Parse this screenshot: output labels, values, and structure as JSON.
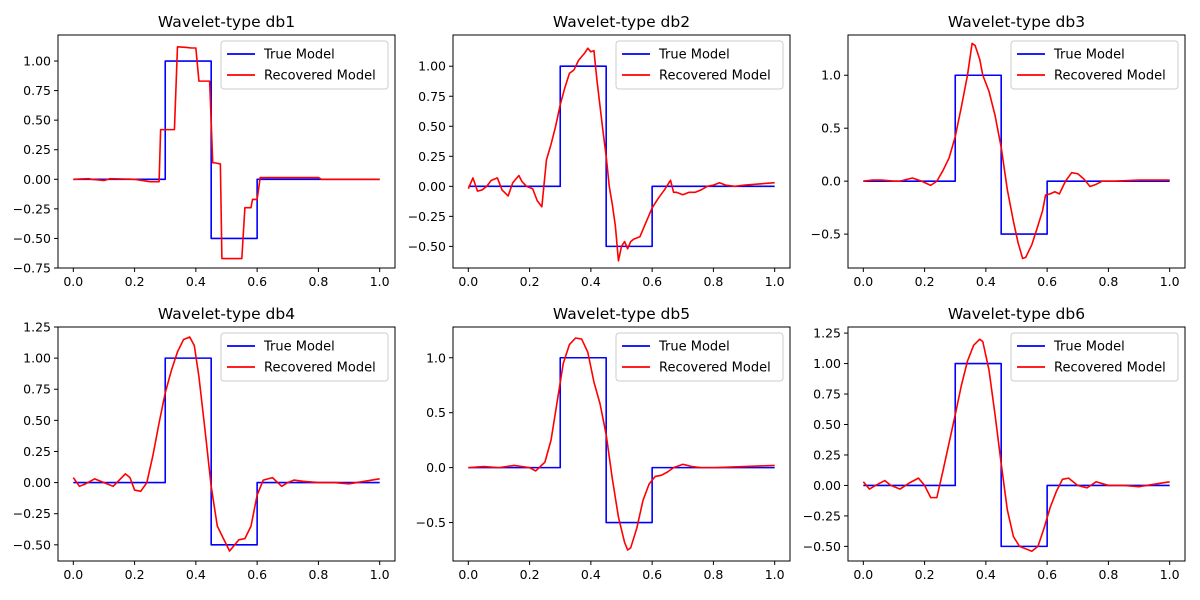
{
  "figure": {
    "background": "#ffffff"
  },
  "colors": {
    "true_model": "#0000ff",
    "recovered_model": "#ff0000"
  },
  "chart_data": [
    {
      "type": "line",
      "title": "Wavelet-type db1",
      "xlabel": "",
      "ylabel": "",
      "xlim": [
        -0.05,
        1.05
      ],
      "ylim": [
        -0.75,
        1.22
      ],
      "xticks": [
        0.0,
        0.2,
        0.4,
        0.6,
        0.8,
        1.0
      ],
      "xtick_labels": [
        "0.0",
        "0.2",
        "0.4",
        "0.6",
        "0.8",
        "1.0"
      ],
      "yticks": [
        -0.75,
        -0.5,
        -0.25,
        0.0,
        0.25,
        0.5,
        0.75,
        1.0
      ],
      "ytick_labels": [
        "−0.75",
        "−0.50",
        "−0.25",
        "0.00",
        "0.25",
        "0.50",
        "0.75",
        "1.00"
      ],
      "legend": {
        "position": "upper right",
        "entries": [
          "True Model",
          "Recovered Model"
        ]
      },
      "series": [
        {
          "name": "True Model",
          "color": "#0000ff",
          "x": [
            0,
            0.3,
            0.3,
            0.45,
            0.45,
            0.6,
            0.6,
            1.0
          ],
          "y": [
            0,
            0,
            1,
            1,
            -0.5,
            -0.5,
            0,
            0
          ]
        },
        {
          "name": "Recovered Model",
          "color": "#ff0000",
          "x": [
            0,
            0.05,
            0.06,
            0.1,
            0.12,
            0.2,
            0.25,
            0.28,
            0.285,
            0.31,
            0.315,
            0.33,
            0.34,
            0.37,
            0.385,
            0.4,
            0.41,
            0.44,
            0.445,
            0.455,
            0.46,
            0.48,
            0.485,
            0.55,
            0.56,
            0.58,
            0.585,
            0.6,
            0.61,
            0.8,
            0.81,
            1.0
          ],
          "y": [
            0,
            0.005,
            0.0,
            -0.01,
            0.005,
            0.0,
            -0.02,
            -0.02,
            0.42,
            0.42,
            0.42,
            0.42,
            1.12,
            1.115,
            1.11,
            1.11,
            0.83,
            0.83,
            0.83,
            0.14,
            0.14,
            0.13,
            -0.67,
            -0.67,
            -0.24,
            -0.24,
            -0.17,
            -0.17,
            0.015,
            0.015,
            0.0,
            0.0
          ]
        }
      ]
    },
    {
      "type": "line",
      "title": "Wavelet-type db2",
      "xlabel": "",
      "ylabel": "",
      "xlim": [
        -0.05,
        1.05
      ],
      "ylim": [
        -0.68,
        1.26
      ],
      "xticks": [
        0.0,
        0.2,
        0.4,
        0.6,
        0.8,
        1.0
      ],
      "xtick_labels": [
        "0.0",
        "0.2",
        "0.4",
        "0.6",
        "0.8",
        "1.0"
      ],
      "yticks": [
        -0.5,
        -0.25,
        0.0,
        0.25,
        0.5,
        0.75,
        1.0
      ],
      "ytick_labels": [
        "−0.50",
        "−0.25",
        "0.00",
        "0.25",
        "0.50",
        "0.75",
        "1.00"
      ],
      "legend": {
        "position": "upper right",
        "entries": [
          "True Model",
          "Recovered Model"
        ]
      },
      "series": [
        {
          "name": "True Model",
          "color": "#0000ff",
          "x": [
            0,
            0.3,
            0.3,
            0.45,
            0.45,
            0.6,
            0.6,
            1.0
          ],
          "y": [
            0,
            0,
            1,
            1,
            -0.5,
            -0.5,
            0,
            0
          ]
        },
        {
          "name": "Recovered Model",
          "color": "#ff0000",
          "x": [
            0,
            0.015,
            0.03,
            0.045,
            0.06,
            0.075,
            0.095,
            0.11,
            0.13,
            0.145,
            0.165,
            0.175,
            0.19,
            0.21,
            0.225,
            0.24,
            0.255,
            0.27,
            0.285,
            0.3,
            0.315,
            0.33,
            0.345,
            0.36,
            0.38,
            0.39,
            0.4,
            0.41,
            0.42,
            0.44,
            0.45,
            0.46,
            0.47,
            0.48,
            0.49,
            0.5,
            0.51,
            0.52,
            0.53,
            0.54,
            0.56,
            0.58,
            0.6,
            0.62,
            0.64,
            0.66,
            0.67,
            0.68,
            0.7,
            0.72,
            0.74,
            0.76,
            0.78,
            0.8,
            0.82,
            0.84,
            0.87,
            0.9,
            0.95,
            1.0
          ],
          "y": [
            -0.02,
            0.07,
            -0.04,
            -0.03,
            0.0,
            0.05,
            0.07,
            -0.03,
            -0.08,
            0.03,
            0.09,
            0.04,
            0.0,
            -0.02,
            -0.12,
            -0.17,
            0.22,
            0.35,
            0.5,
            0.68,
            0.82,
            0.94,
            0.97,
            1.05,
            1.11,
            1.15,
            1.12,
            1.13,
            0.88,
            0.45,
            0.25,
            0.0,
            -0.15,
            -0.33,
            -0.62,
            -0.5,
            -0.46,
            -0.52,
            -0.46,
            -0.44,
            -0.42,
            -0.3,
            -0.18,
            -0.1,
            -0.03,
            0.05,
            -0.05,
            -0.05,
            -0.07,
            -0.05,
            -0.05,
            -0.03,
            0.0,
            0.01,
            0.03,
            0.01,
            0.0,
            0.01,
            0.02,
            0.03
          ]
        }
      ]
    },
    {
      "type": "line",
      "title": "Wavelet-type db3",
      "xlabel": "",
      "ylabel": "",
      "xlim": [
        -0.05,
        1.05
      ],
      "ylim": [
        -0.82,
        1.38
      ],
      "xticks": [
        0.0,
        0.2,
        0.4,
        0.6,
        0.8,
        1.0
      ],
      "xtick_labels": [
        "0.0",
        "0.2",
        "0.4",
        "0.6",
        "0.8",
        "1.0"
      ],
      "yticks": [
        -0.5,
        0.0,
        0.5,
        1.0
      ],
      "ytick_labels": [
        "−0.5",
        "0.0",
        "0.5",
        "1.0"
      ],
      "legend": {
        "position": "upper right",
        "entries": [
          "True Model",
          "Recovered Model"
        ]
      },
      "series": [
        {
          "name": "True Model",
          "color": "#0000ff",
          "x": [
            0,
            0.3,
            0.3,
            0.45,
            0.45,
            0.6,
            0.6,
            1.0
          ],
          "y": [
            0,
            0,
            1,
            1,
            -0.5,
            -0.5,
            0,
            0
          ]
        },
        {
          "name": "Recovered Model",
          "color": "#ff0000",
          "x": [
            0,
            0.03,
            0.06,
            0.1,
            0.12,
            0.16,
            0.19,
            0.22,
            0.24,
            0.26,
            0.28,
            0.3,
            0.32,
            0.34,
            0.355,
            0.365,
            0.38,
            0.39,
            0.41,
            0.43,
            0.45,
            0.47,
            0.49,
            0.505,
            0.52,
            0.53,
            0.55,
            0.57,
            0.585,
            0.595,
            0.61,
            0.625,
            0.64,
            0.66,
            0.68,
            0.7,
            0.72,
            0.74,
            0.76,
            0.78,
            0.82,
            0.9,
            0.95,
            1.0
          ],
          "y": [
            0,
            0.01,
            0.01,
            0.0,
            0.0,
            0.03,
            0.0,
            -0.04,
            0.0,
            0.1,
            0.22,
            0.42,
            0.7,
            1.0,
            1.3,
            1.28,
            1.15,
            1.0,
            0.85,
            0.62,
            0.32,
            -0.08,
            -0.38,
            -0.58,
            -0.73,
            -0.72,
            -0.6,
            -0.42,
            -0.28,
            -0.13,
            -0.12,
            -0.1,
            -0.12,
            0.0,
            0.08,
            0.07,
            0.02,
            -0.05,
            -0.03,
            0.0,
            0.0,
            0.01,
            0.01,
            0.01
          ]
        }
      ]
    },
    {
      "type": "line",
      "title": "Wavelet-type db4",
      "xlabel": "",
      "ylabel": "",
      "xlim": [
        -0.05,
        1.05
      ],
      "ylim": [
        -0.63,
        1.25
      ],
      "xticks": [
        0.0,
        0.2,
        0.4,
        0.6,
        0.8,
        1.0
      ],
      "xtick_labels": [
        "0.0",
        "0.2",
        "0.4",
        "0.6",
        "0.8",
        "1.0"
      ],
      "yticks": [
        -0.5,
        -0.25,
        0.0,
        0.25,
        0.5,
        0.75,
        1.0,
        1.25
      ],
      "ytick_labels": [
        "−0.50",
        "−0.25",
        "0.00",
        "0.25",
        "0.50",
        "0.75",
        "1.00",
        "1.25"
      ],
      "legend": {
        "position": "upper right",
        "entries": [
          "True Model",
          "Recovered Model"
        ]
      },
      "series": [
        {
          "name": "True Model",
          "color": "#0000ff",
          "x": [
            0,
            0.3,
            0.3,
            0.45,
            0.45,
            0.6,
            0.6,
            1.0
          ],
          "y": [
            0,
            0,
            1,
            1,
            -0.5,
            -0.5,
            0,
            0
          ]
        },
        {
          "name": "Recovered Model",
          "color": "#ff0000",
          "x": [
            0,
            0.02,
            0.04,
            0.07,
            0.1,
            0.13,
            0.15,
            0.17,
            0.185,
            0.2,
            0.22,
            0.24,
            0.26,
            0.28,
            0.3,
            0.32,
            0.34,
            0.36,
            0.38,
            0.395,
            0.41,
            0.43,
            0.45,
            0.47,
            0.49,
            0.51,
            0.52,
            0.54,
            0.56,
            0.58,
            0.6,
            0.62,
            0.65,
            0.68,
            0.7,
            0.72,
            0.75,
            0.8,
            0.85,
            0.9,
            0.95,
            1.0
          ],
          "y": [
            0.04,
            -0.03,
            -0.01,
            0.03,
            0.0,
            -0.03,
            0.02,
            0.07,
            0.04,
            -0.06,
            -0.07,
            0.0,
            0.22,
            0.48,
            0.72,
            0.9,
            1.05,
            1.15,
            1.17,
            1.1,
            0.85,
            0.42,
            -0.03,
            -0.35,
            -0.45,
            -0.55,
            -0.52,
            -0.46,
            -0.45,
            -0.35,
            -0.1,
            0.02,
            0.04,
            -0.03,
            0.0,
            0.02,
            0.01,
            0.0,
            0.0,
            -0.01,
            0.01,
            0.03
          ]
        }
      ]
    },
    {
      "type": "line",
      "title": "Wavelet-type db5",
      "xlabel": "",
      "ylabel": "",
      "xlim": [
        -0.05,
        1.05
      ],
      "ylim": [
        -0.85,
        1.28
      ],
      "xticks": [
        0.0,
        0.2,
        0.4,
        0.6,
        0.8,
        1.0
      ],
      "xtick_labels": [
        "0.0",
        "0.2",
        "0.4",
        "0.6",
        "0.8",
        "1.0"
      ],
      "yticks": [
        -0.5,
        0.0,
        0.5,
        1.0
      ],
      "ytick_labels": [
        "−0.5",
        "0.0",
        "0.5",
        "1.0"
      ],
      "legend": {
        "position": "upper right",
        "entries": [
          "True Model",
          "Recovered Model"
        ]
      },
      "series": [
        {
          "name": "True Model",
          "color": "#0000ff",
          "x": [
            0,
            0.3,
            0.3,
            0.45,
            0.45,
            0.6,
            0.6,
            1.0
          ],
          "y": [
            0,
            0,
            1,
            1,
            -0.5,
            -0.5,
            0,
            0
          ]
        },
        {
          "name": "Recovered Model",
          "color": "#ff0000",
          "x": [
            0,
            0.05,
            0.1,
            0.15,
            0.2,
            0.22,
            0.25,
            0.27,
            0.29,
            0.31,
            0.33,
            0.35,
            0.37,
            0.39,
            0.41,
            0.43,
            0.45,
            0.47,
            0.49,
            0.51,
            0.52,
            0.53,
            0.55,
            0.57,
            0.59,
            0.61,
            0.63,
            0.65,
            0.67,
            0.7,
            0.73,
            0.76,
            0.8,
            0.9,
            1.0
          ],
          "y": [
            0,
            0.01,
            0.0,
            0.02,
            0.0,
            -0.03,
            0.05,
            0.25,
            0.6,
            0.95,
            1.12,
            1.18,
            1.17,
            1.05,
            0.78,
            0.58,
            0.3,
            -0.1,
            -0.45,
            -0.68,
            -0.75,
            -0.73,
            -0.55,
            -0.3,
            -0.15,
            -0.08,
            -0.07,
            -0.04,
            0.0,
            0.03,
            0.01,
            0.0,
            0.0,
            0.01,
            0.02
          ]
        }
      ]
    },
    {
      "type": "line",
      "title": "Wavelet-type db6",
      "xlabel": "",
      "ylabel": "",
      "xlim": [
        -0.05,
        1.05
      ],
      "ylim": [
        -0.62,
        1.3
      ],
      "xticks": [
        0.0,
        0.2,
        0.4,
        0.6,
        0.8,
        1.0
      ],
      "xtick_labels": [
        "0.0",
        "0.2",
        "0.4",
        "0.6",
        "0.8",
        "1.0"
      ],
      "yticks": [
        -0.5,
        -0.25,
        0.0,
        0.25,
        0.5,
        0.75,
        1.0,
        1.25
      ],
      "ytick_labels": [
        "−0.50",
        "−0.25",
        "0.00",
        "0.25",
        "0.50",
        "0.75",
        "1.00",
        "1.25"
      ],
      "legend": {
        "position": "upper right",
        "entries": [
          "True Model",
          "Recovered Model"
        ]
      },
      "series": [
        {
          "name": "True Model",
          "color": "#0000ff",
          "x": [
            0,
            0.3,
            0.3,
            0.45,
            0.45,
            0.6,
            0.6,
            1.0
          ],
          "y": [
            0,
            0,
            1,
            1,
            -0.5,
            -0.5,
            0,
            0
          ]
        },
        {
          "name": "Recovered Model",
          "color": "#ff0000",
          "x": [
            0,
            0.02,
            0.04,
            0.07,
            0.09,
            0.12,
            0.15,
            0.18,
            0.2,
            0.22,
            0.24,
            0.26,
            0.28,
            0.3,
            0.32,
            0.34,
            0.36,
            0.38,
            0.39,
            0.41,
            0.43,
            0.45,
            0.47,
            0.49,
            0.51,
            0.53,
            0.55,
            0.57,
            0.59,
            0.61,
            0.63,
            0.65,
            0.67,
            0.7,
            0.73,
            0.76,
            0.8,
            0.85,
            0.9,
            0.95,
            1.0
          ],
          "y": [
            0.03,
            -0.03,
            0.0,
            0.04,
            0.0,
            -0.03,
            0.02,
            0.06,
            0.0,
            -0.1,
            -0.1,
            0.12,
            0.35,
            0.58,
            0.82,
            1.02,
            1.15,
            1.2,
            1.18,
            0.95,
            0.58,
            0.18,
            -0.2,
            -0.42,
            -0.5,
            -0.52,
            -0.54,
            -0.5,
            -0.35,
            -0.18,
            -0.05,
            0.05,
            0.06,
            0.0,
            -0.02,
            0.03,
            0.0,
            0.0,
            -0.01,
            0.01,
            0.03
          ]
        }
      ]
    }
  ]
}
